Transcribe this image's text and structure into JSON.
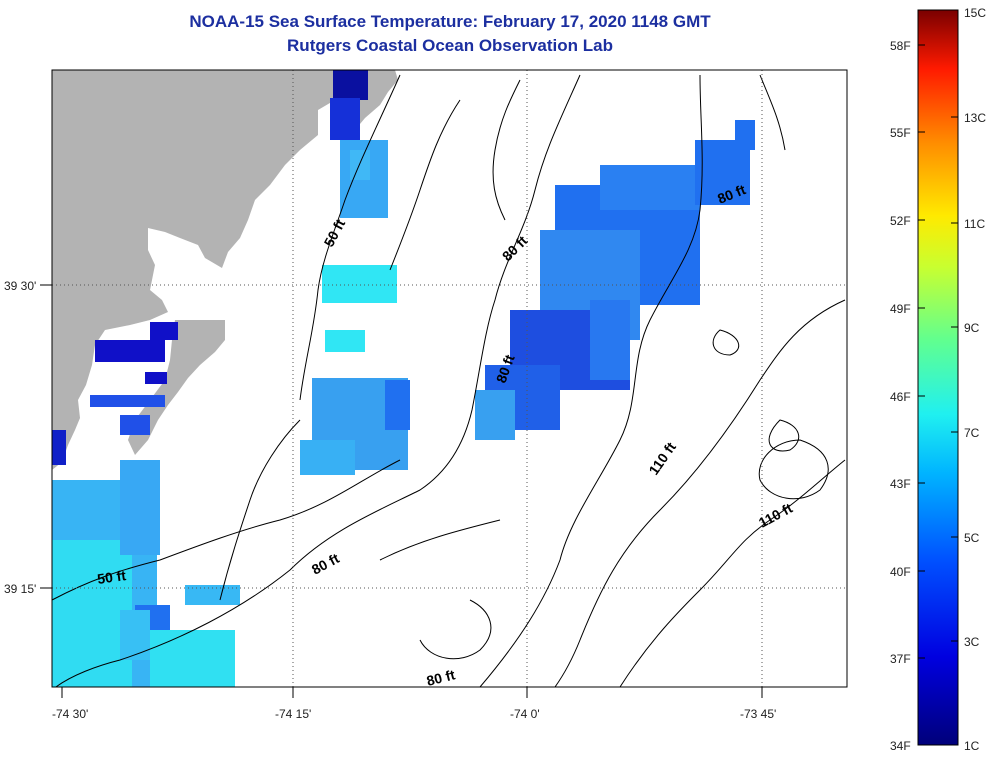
{
  "title": {
    "line1": "NOAA-15 Sea Surface Temperature:  February 17, 2020 1148 GMT",
    "line2": "Rutgers Coastal Ocean Observation Lab"
  },
  "colors": {
    "land": "#b3b3b3",
    "deep_blue": "#1a1ad0",
    "mid_blue": "#2070f0",
    "light_blue": "#38a8f4",
    "cyan": "#30e6f4",
    "title": "#1c2fa0"
  },
  "axes": {
    "x_ticks": [
      "-74 30'",
      "-74 15'",
      "-74 0'",
      "-73 45'"
    ],
    "y_ticks": [
      "39 30'",
      "39 15'"
    ]
  },
  "contour_labels": [
    "50 ft",
    "50 ft",
    "80 ft",
    "80 ft",
    "80 ft",
    "80 ft",
    "80 ft",
    "110 ft",
    "110 ft"
  ],
  "colorbar": {
    "fahrenheit": [
      "58F",
      "55F",
      "52F",
      "49F",
      "46F",
      "43F",
      "40F",
      "37F",
      "34F"
    ],
    "celsius": [
      "15C",
      "13C",
      "11C",
      "9C",
      "7C",
      "5C",
      "3C",
      "1C"
    ]
  }
}
